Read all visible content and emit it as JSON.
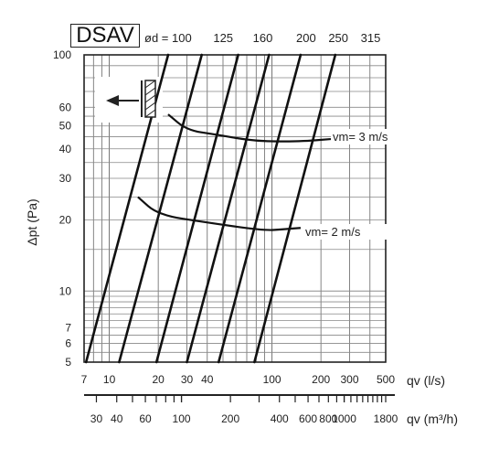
{
  "model": "DSAV",
  "diameter_header": {
    "symbol": "ød",
    "eq": "=",
    "values": [
      "100",
      "125",
      "160",
      "200",
      "250",
      "315"
    ]
  },
  "chart_data": {
    "type": "line",
    "ylabel": "Δpt (Pa)",
    "yscale": "log",
    "ylim": [
      5,
      100
    ],
    "y_ticks": [
      {
        "value": 100,
        "label": "100"
      },
      {
        "value": 60,
        "label": "60"
      },
      {
        "value": 50,
        "label": "50"
      },
      {
        "value": 40,
        "label": "40"
      },
      {
        "value": 30,
        "label": "30"
      },
      {
        "value": 20,
        "label": "20"
      },
      {
        "value": 10,
        "label": "10"
      },
      {
        "value": 7,
        "label": "7"
      },
      {
        "value": 6,
        "label": "6"
      },
      {
        "value": 5,
        "label": "5"
      }
    ],
    "xscale": "log",
    "xlim": [
      7,
      500
    ],
    "x_axis_ls": {
      "label": "qv (l/s)",
      "ticks": [
        {
          "value": 7,
          "label": "7"
        },
        {
          "value": 10,
          "label": "10"
        },
        {
          "value": 20,
          "label": "20"
        },
        {
          "value": 30,
          "label": "30"
        },
        {
          "value": 40,
          "label": "40"
        },
        {
          "value": 100,
          "label": "100"
        },
        {
          "value": 200,
          "label": "200"
        },
        {
          "value": 300,
          "label": "300"
        },
        {
          "value": 500,
          "label": "500"
        }
      ]
    },
    "x_axis_m3h": {
      "label": "qv (m³/h)",
      "ticks": [
        {
          "value": 30,
          "label": "30"
        },
        {
          "value": 40,
          "label": "40"
        },
        {
          "value": 60,
          "label": "60"
        },
        {
          "value": 100,
          "label": "100"
        },
        {
          "value": 200,
          "label": "200"
        },
        {
          "value": 400,
          "label": "400"
        },
        {
          "value": 600,
          "label": "600"
        },
        {
          "value": 800,
          "label": "800"
        },
        {
          "value": 1000,
          "label": "1000"
        },
        {
          "value": 1800,
          "label": "1800"
        }
      ]
    },
    "series": [
      {
        "name": "100",
        "points": [
          [
            7.2,
            5
          ],
          [
            23,
            100
          ]
        ]
      },
      {
        "name": "125",
        "points": [
          [
            11.5,
            5
          ],
          [
            37,
            100
          ]
        ]
      },
      {
        "name": "160",
        "points": [
          [
            19.5,
            5
          ],
          [
            62,
            100
          ]
        ]
      },
      {
        "name": "200",
        "points": [
          [
            30,
            5
          ],
          [
            96,
            100
          ]
        ]
      },
      {
        "name": "250",
        "points": [
          [
            47,
            5
          ],
          [
            150,
            100
          ]
        ]
      },
      {
        "name": "315",
        "points": [
          [
            78,
            5
          ],
          [
            245,
            100
          ]
        ]
      }
    ],
    "velocity_curves": [
      {
        "label": "vm= 3 m/s",
        "points": [
          [
            23,
            56
          ],
          [
            30,
            48
          ],
          [
            45,
            46
          ],
          [
            80,
            43
          ],
          [
            150,
            43
          ],
          [
            230,
            44
          ]
        ]
      },
      {
        "label": "vm= 2 m/s",
        "points": [
          [
            15,
            25
          ],
          [
            20,
            21
          ],
          [
            40,
            19.5
          ],
          [
            90,
            18
          ],
          [
            120,
            18.3
          ],
          [
            150,
            18.5
          ]
        ]
      }
    ],
    "grid": true
  }
}
